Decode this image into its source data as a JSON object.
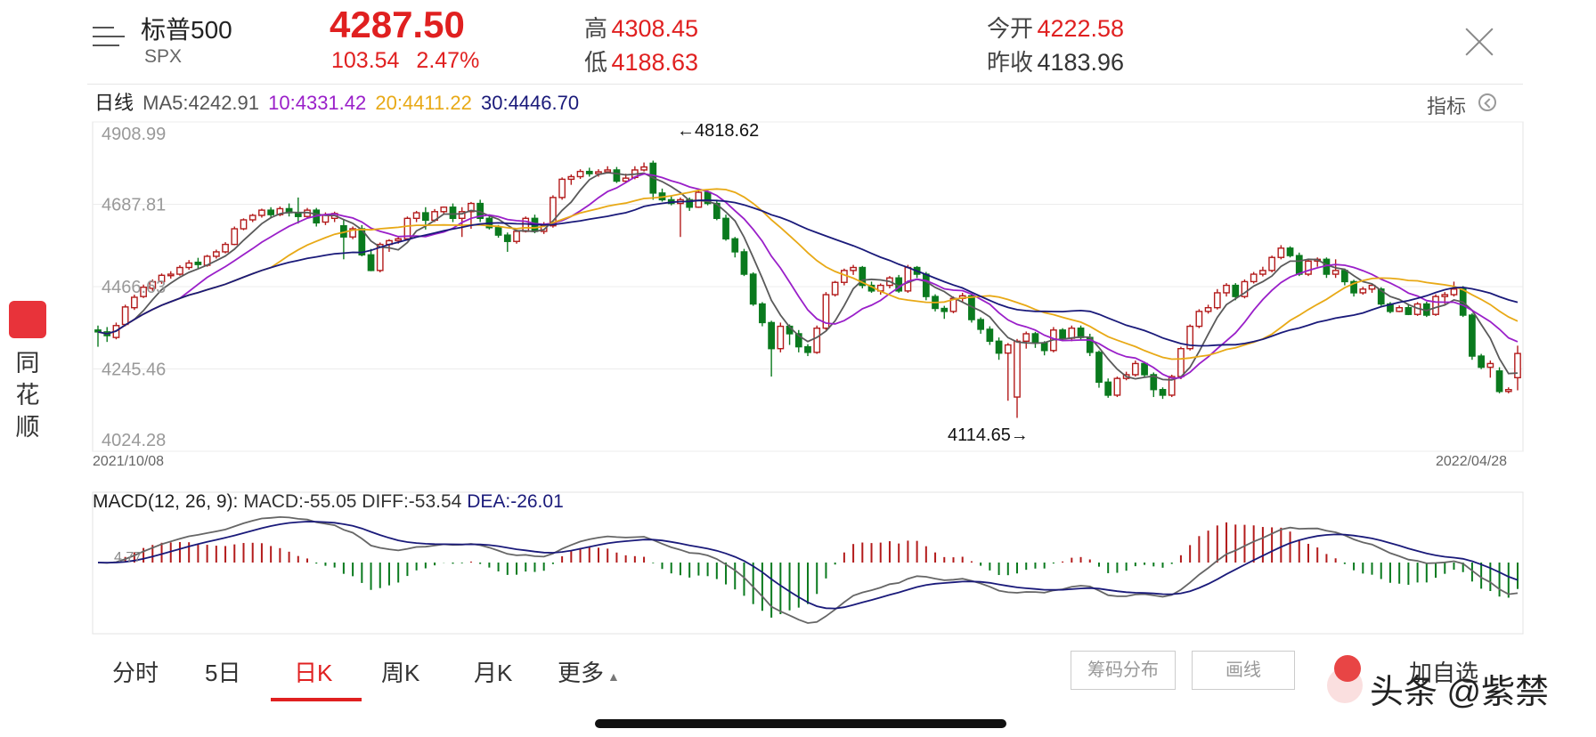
{
  "header": {
    "name": "标普500",
    "code": "SPX",
    "price": "4287.50",
    "change": "103.54",
    "change_pct": "2.47%",
    "high_label": "高",
    "high": "4308.45",
    "low_label": "低",
    "low": "4188.63",
    "open_label": "今开",
    "open": "4222.58",
    "prev_close_label": "昨收",
    "prev_close": "4183.96"
  },
  "ma_row": {
    "period": "日线",
    "ma5": "MA5:4242.91",
    "ma10": "10:4331.42",
    "ma20": "20:4411.22",
    "ma30": "30:4446.70",
    "indicator": "指标"
  },
  "colors": {
    "up": "#b31b1b",
    "down": "#0a7a1e",
    "ma5": "#5a5a5a",
    "ma10": "#9a1fc9",
    "ma20": "#e8a916",
    "ma30": "#1a1a7a",
    "price_red": "#e02020"
  },
  "chart_data": [
    {
      "type": "candlestick",
      "title": "",
      "y_ticks": [
        "4908.99",
        "4687.81",
        "4466.63",
        "4245.46",
        "4024.28"
      ],
      "ylim": [
        4024.28,
        4908.99
      ],
      "x_start": "2021/10/08",
      "x_end": "2022/04/28",
      "annotations": {
        "max": "←4818.62",
        "min": "4114.65→"
      },
      "grid": true,
      "candles_ohlc": [
        [
          4350,
          4345,
          4362,
          4305
        ],
        [
          4345,
          4335,
          4358,
          4318
        ],
        [
          4330,
          4362,
          4370,
          4325
        ],
        [
          4365,
          4412,
          4418,
          4360
        ],
        [
          4410,
          4438,
          4445,
          4404
        ],
        [
          4440,
          4465,
          4472,
          4436
        ],
        [
          4462,
          4480,
          4486,
          4455
        ],
        [
          4480,
          4497,
          4502,
          4474
        ],
        [
          4496,
          4500,
          4508,
          4488
        ],
        [
          4500,
          4518,
          4524,
          4496
        ],
        [
          4518,
          4530,
          4538,
          4512
        ],
        [
          4532,
          4526,
          4544,
          4515
        ],
        [
          4524,
          4548,
          4552,
          4520
        ],
        [
          4548,
          4560,
          4566,
          4542
        ],
        [
          4560,
          4580,
          4586,
          4556
        ],
        [
          4580,
          4622,
          4628,
          4578
        ],
        [
          4622,
          4646,
          4650,
          4618
        ],
        [
          4646,
          4658,
          4662,
          4640
        ],
        [
          4658,
          4672,
          4676,
          4652
        ],
        [
          4672,
          4660,
          4680,
          4650
        ],
        [
          4660,
          4676,
          4682,
          4656
        ],
        [
          4676,
          4665,
          4690,
          4655
        ],
        [
          4665,
          4655,
          4706,
          4636
        ],
        [
          4655,
          4672,
          4678,
          4650
        ],
        [
          4672,
          4638,
          4678,
          4628
        ],
        [
          4640,
          4660,
          4666,
          4632
        ],
        [
          4650,
          4663,
          4668,
          4640
        ],
        [
          4630,
          4600,
          4648,
          4540
        ],
        [
          4600,
          4622,
          4628,
          4594
        ],
        [
          4622,
          4552,
          4632,
          4548
        ],
        [
          4552,
          4510,
          4568,
          4508
        ],
        [
          4510,
          4580,
          4585,
          4505
        ],
        [
          4580,
          4590,
          4594,
          4560
        ],
        [
          4590,
          4595,
          4602,
          4582
        ],
        [
          4595,
          4650,
          4655,
          4590
        ],
        [
          4650,
          4665,
          4670,
          4640
        ],
        [
          4665,
          4645,
          4680,
          4620
        ],
        [
          4645,
          4668,
          4675,
          4640
        ],
        [
          4668,
          4680,
          4682,
          4660
        ],
        [
          4680,
          4650,
          4690,
          4640
        ],
        [
          4650,
          4668,
          4680,
          4600
        ],
        [
          4668,
          4690,
          4694,
          4622
        ],
        [
          4690,
          4650,
          4700,
          4640
        ],
        [
          4650,
          4625,
          4655,
          4620
        ],
        [
          4625,
          4605,
          4632,
          4598
        ],
        [
          4605,
          4588,
          4612,
          4560
        ],
        [
          4588,
          4615,
          4620,
          4582
        ],
        [
          4615,
          4650,
          4655,
          4612
        ],
        [
          4650,
          4615,
          4660,
          4610
        ],
        [
          4615,
          4630,
          4640,
          4608
        ],
        [
          4630,
          4706,
          4712,
          4625
        ],
        [
          4706,
          4755,
          4760,
          4700
        ],
        [
          4755,
          4762,
          4768,
          4740
        ],
        [
          4762,
          4776,
          4782,
          4756
        ],
        [
          4776,
          4770,
          4786,
          4762
        ],
        [
          4770,
          4775,
          4782,
          4762
        ],
        [
          4775,
          4780,
          4790,
          4770
        ],
        [
          4780,
          4750,
          4788,
          4745
        ],
        [
          4750,
          4758,
          4770,
          4745
        ],
        [
          4760,
          4780,
          4790,
          4755
        ],
        [
          4780,
          4788,
          4800,
          4776
        ],
        [
          4798,
          4718,
          4805,
          4700
        ],
        [
          4718,
          4700,
          4730,
          4695
        ],
        [
          4700,
          4690,
          4712,
          4685
        ],
        [
          4690,
          4700,
          4706,
          4600
        ],
        [
          4700,
          4680,
          4706,
          4670
        ],
        [
          4680,
          4720,
          4730,
          4678
        ],
        [
          4720,
          4690,
          4725,
          4685
        ],
        [
          4690,
          4650,
          4700,
          4645
        ],
        [
          4650,
          4595,
          4660,
          4590
        ],
        [
          4595,
          4560,
          4600,
          4545
        ],
        [
          4560,
          4500,
          4568,
          4495
        ],
        [
          4500,
          4420,
          4505,
          4415
        ],
        [
          4420,
          4370,
          4425,
          4360
        ],
        [
          4370,
          4300,
          4375,
          4225
        ],
        [
          4300,
          4360,
          4370,
          4290
        ],
        [
          4360,
          4340,
          4365,
          4310
        ],
        [
          4340,
          4305,
          4350,
          4290
        ],
        [
          4305,
          4290,
          4312,
          4280
        ],
        [
          4290,
          4355,
          4362,
          4286
        ],
        [
          4355,
          4445,
          4452,
          4350
        ],
        [
          4445,
          4478,
          4482,
          4440
        ],
        [
          4478,
          4510,
          4515,
          4470
        ],
        [
          4510,
          4518,
          4525,
          4498
        ],
        [
          4518,
          4470,
          4522,
          4462
        ],
        [
          4470,
          4455,
          4480,
          4450
        ],
        [
          4455,
          4470,
          4475,
          4445
        ],
        [
          4470,
          4490,
          4495,
          4462
        ],
        [
          4490,
          4455,
          4498,
          4450
        ],
        [
          4455,
          4518,
          4525,
          4450
        ],
        [
          4518,
          4500,
          4522,
          4490
        ],
        [
          4500,
          4440,
          4506,
          4430
        ],
        [
          4440,
          4408,
          4446,
          4400
        ],
        [
          4408,
          4400,
          4415,
          4380
        ],
        [
          4400,
          4435,
          4440,
          4395
        ],
        [
          4435,
          4442,
          4450,
          4425
        ],
        [
          4442,
          4378,
          4448,
          4370
        ],
        [
          4378,
          4352,
          4384,
          4340
        ],
        [
          4352,
          4320,
          4360,
          4310
        ],
        [
          4320,
          4288,
          4330,
          4270
        ],
        [
          4288,
          4310,
          4315,
          4160
        ],
        [
          4170,
          4320,
          4326,
          4114
        ],
        [
          4320,
          4340,
          4346,
          4300
        ],
        [
          4340,
          4315,
          4345,
          4302
        ],
        [
          4315,
          4295,
          4320,
          4282
        ],
        [
          4295,
          4350,
          4358,
          4290
        ],
        [
          4350,
          4328,
          4355,
          4320
        ],
        [
          4328,
          4355,
          4362,
          4320
        ],
        [
          4355,
          4330,
          4362,
          4322
        ],
        [
          4330,
          4290,
          4340,
          4280
        ],
        [
          4290,
          4210,
          4295,
          4195
        ],
        [
          4210,
          4175,
          4220,
          4168
        ],
        [
          4175,
          4220,
          4225,
          4170
        ],
        [
          4220,
          4230,
          4238,
          4215
        ],
        [
          4230,
          4260,
          4268,
          4225
        ],
        [
          4260,
          4230,
          4265,
          4222
        ],
        [
          4230,
          4190,
          4236,
          4170
        ],
        [
          4190,
          4175,
          4196,
          4165
        ],
        [
          4175,
          4225,
          4230,
          4170
        ],
        [
          4225,
          4300,
          4305,
          4218
        ],
        [
          4300,
          4360,
          4365,
          4295
        ],
        [
          4360,
          4400,
          4406,
          4355
        ],
        [
          4400,
          4410,
          4418,
          4394
        ],
        [
          4410,
          4450,
          4460,
          4405
        ],
        [
          4450,
          4470,
          4476,
          4440
        ],
        [
          4470,
          4440,
          4476,
          4430
        ],
        [
          4440,
          4480,
          4486,
          4435
        ],
        [
          4480,
          4500,
          4506,
          4475
        ],
        [
          4500,
          4510,
          4520,
          4494
        ],
        [
          4510,
          4545,
          4550,
          4505
        ],
        [
          4545,
          4570,
          4578,
          4540
        ],
        [
          4570,
          4550,
          4575,
          4545
        ],
        [
          4550,
          4500,
          4558,
          4495
        ],
        [
          4500,
          4535,
          4540,
          4495
        ],
        [
          4535,
          4540,
          4545,
          4520
        ],
        [
          4540,
          4500,
          4545,
          4490
        ],
        [
          4500,
          4510,
          4540,
          4490
        ],
        [
          4510,
          4480,
          4515,
          4470
        ],
        [
          4480,
          4450,
          4485,
          4440
        ],
        [
          4450,
          4460,
          4466,
          4445
        ],
        [
          4460,
          4470,
          4475,
          4450
        ],
        [
          4460,
          4420,
          4465,
          4415
        ],
        [
          4420,
          4400,
          4425,
          4395
        ],
        [
          4400,
          4410,
          4416,
          4398
        ],
        [
          4410,
          4392,
          4418,
          4390
        ],
        [
          4392,
          4420,
          4425,
          4388
        ],
        [
          4420,
          4390,
          4426,
          4385
        ],
        [
          4392,
          4440,
          4446,
          4388
        ],
        [
          4440,
          4445,
          4452,
          4420
        ],
        [
          4445,
          4460,
          4480,
          4440
        ],
        [
          4460,
          4390,
          4468,
          4385
        ],
        [
          4390,
          4280,
          4395,
          4270
        ],
        [
          4280,
          4250,
          4286,
          4245
        ],
        [
          4250,
          4260,
          4268,
          4222
        ],
        [
          4240,
          4185,
          4250,
          4180
        ],
        [
          4185,
          4190,
          4196,
          4180
        ],
        [
          4222,
          4287,
          4308,
          4188
        ]
      ],
      "ma_series": [
        "MA5",
        "MA10",
        "MA20",
        "MA30"
      ]
    },
    {
      "type": "bar+line",
      "title": "MACD(12, 26, 9):",
      "series_labels": [
        "MACD:-55.05",
        "DIFF:-53.54",
        "DEA:-26.01"
      ],
      "y_tick": "4.77"
    }
  ],
  "tabs": [
    "分时",
    "5日",
    "日K",
    "周K",
    "月K",
    "更多"
  ],
  "buttons": {
    "chips": "筹码分布",
    "draw": "画线",
    "add": "加自选"
  },
  "logo_text": "同花顺",
  "watermark": "头条 @紫禁"
}
